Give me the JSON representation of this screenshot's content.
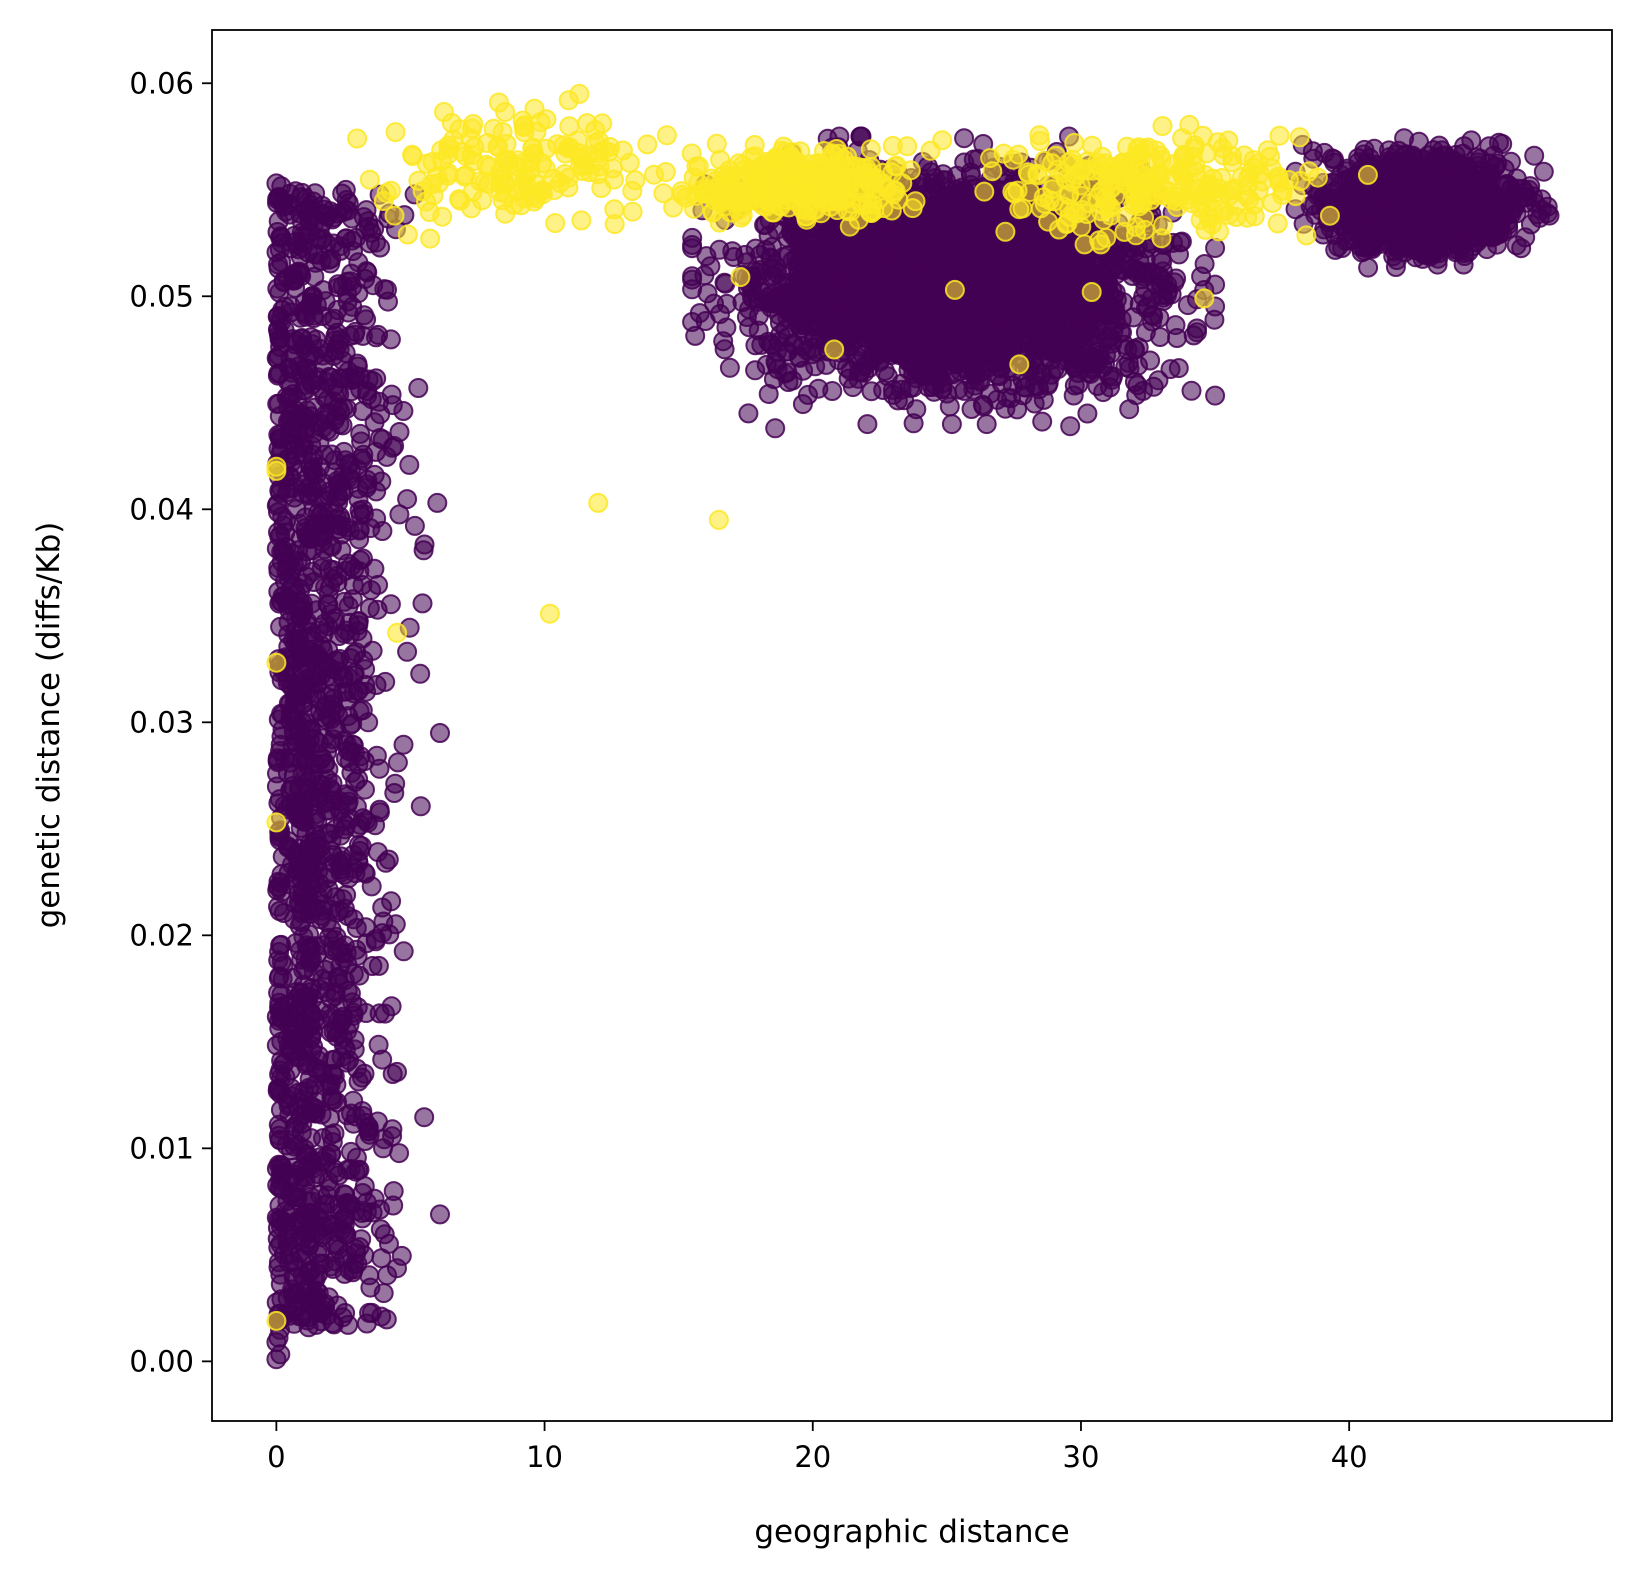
{
  "chart_data": {
    "type": "scatter",
    "title": "",
    "xlabel": "geographic distance",
    "ylabel": "genetic distance (diffs/Kb)",
    "xlim": [
      -2.4,
      49.8
    ],
    "ylim": [
      -0.0028,
      0.0625
    ],
    "xticks": [
      0,
      10,
      20,
      30,
      40
    ],
    "xtick_labels": [
      "0",
      "10",
      "20",
      "30",
      "40"
    ],
    "yticks": [
      0.0,
      0.01,
      0.02,
      0.03,
      0.04,
      0.05,
      0.06
    ],
    "ytick_labels": [
      "0.00",
      "0.01",
      "0.02",
      "0.03",
      "0.04",
      "0.05",
      "0.06"
    ],
    "grid": false,
    "legend": "none",
    "marker_alpha": 0.55,
    "colors": {
      "low": "#440154",
      "high": "#fde725"
    },
    "clusters": [
      {
        "color": "low",
        "x_range": [
          0,
          0.2
        ],
        "y_range": [
          0.0,
          0.0553
        ],
        "count": 150
      },
      {
        "color": "low",
        "x_range": [
          0,
          6.2
        ],
        "y_range": [
          0.0017,
          0.055
        ],
        "count": 1400
      },
      {
        "color": "low",
        "x_range": [
          15.5,
          35
        ],
        "y_range": [
          0.044,
          0.0575
        ],
        "count": 3200
      },
      {
        "color": "low",
        "x_range": [
          38,
          47.5
        ],
        "y_range": [
          0.0512,
          0.0575
        ],
        "count": 1200
      },
      {
        "color": "high",
        "x_range": [
          1.5,
          16
        ],
        "y_range": [
          0.0525,
          0.0595
        ],
        "count": 160
      },
      {
        "color": "high",
        "x_range": [
          14,
          25
        ],
        "y_range": [
          0.053,
          0.0575
        ],
        "count": 320
      },
      {
        "color": "high",
        "x_range": [
          25,
          40.5
        ],
        "y_range": [
          0.052,
          0.0585
        ],
        "count": 260
      }
    ],
    "highlighted_points": [
      {
        "x": 0.0,
        "y": 0.0019,
        "color": "high"
      },
      {
        "x": 0.0,
        "y": 0.0253,
        "color": "high"
      },
      {
        "x": 0.0,
        "y": 0.0328,
        "color": "high"
      },
      {
        "x": 0.0,
        "y": 0.0418,
        "color": "high"
      },
      {
        "x": 0.0,
        "y": 0.042,
        "color": "high"
      },
      {
        "x": 4.5,
        "y": 0.0342,
        "color": "high"
      },
      {
        "x": 10.2,
        "y": 0.0351,
        "color": "high"
      },
      {
        "x": 12.0,
        "y": 0.0403,
        "color": "high"
      },
      {
        "x": 16.5,
        "y": 0.0395,
        "color": "high"
      },
      {
        "x": 17.3,
        "y": 0.0509,
        "color": "high"
      },
      {
        "x": 20.8,
        "y": 0.0475,
        "color": "high"
      },
      {
        "x": 25.3,
        "y": 0.0503,
        "color": "high"
      },
      {
        "x": 27.7,
        "y": 0.0468,
        "color": "high"
      },
      {
        "x": 30.4,
        "y": 0.0502,
        "color": "high"
      },
      {
        "x": 34.6,
        "y": 0.0499,
        "color": "high"
      },
      {
        "x": 40.7,
        "y": 0.0557,
        "color": "high"
      },
      {
        "x": 4.9,
        "y": 0.0529,
        "color": "high"
      },
      {
        "x": 10.9,
        "y": 0.0592,
        "color": "high"
      },
      {
        "x": 11.3,
        "y": 0.0595,
        "color": "high"
      },
      {
        "x": 0.0,
        "y": 0.0553,
        "color": "low"
      },
      {
        "x": 0.0,
        "y": 0.0001,
        "color": "low"
      },
      {
        "x": 0.0,
        "y": 0.0009,
        "color": "low"
      },
      {
        "x": 1.2,
        "y": 0.0016,
        "color": "low"
      },
      {
        "x": 2.1,
        "y": 0.0018,
        "color": "low"
      },
      {
        "x": 6.1,
        "y": 0.0069,
        "color": "low"
      },
      {
        "x": 6.1,
        "y": 0.0295,
        "color": "low"
      },
      {
        "x": 6.0,
        "y": 0.0403,
        "color": "low"
      },
      {
        "x": 17.6,
        "y": 0.0445,
        "color": "low"
      },
      {
        "x": 18.6,
        "y": 0.0438,
        "color": "low"
      },
      {
        "x": 29.6,
        "y": 0.0439,
        "color": "low"
      },
      {
        "x": 31.8,
        "y": 0.0447,
        "color": "low"
      },
      {
        "x": 46.9,
        "y": 0.0566,
        "color": "low"
      },
      {
        "x": 47.4,
        "y": 0.0539,
        "color": "low"
      }
    ]
  }
}
